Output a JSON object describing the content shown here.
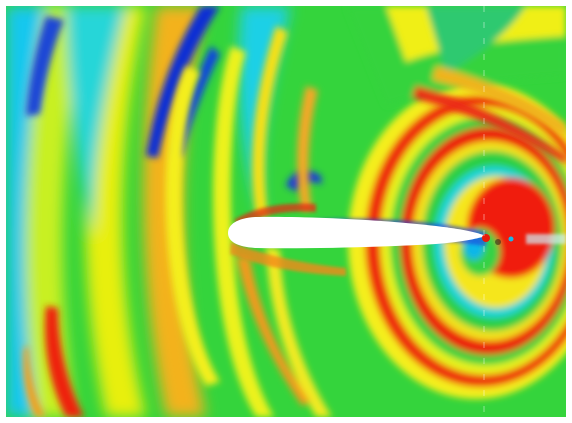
{
  "figure": {
    "kind": "cfd-contour-plot",
    "subject": "airfoil-acoustic-pressure-field",
    "colormap": [
      "#0a2ad8",
      "#19c8f0",
      "#2ed23a",
      "#f0f000",
      "#f09a00",
      "#f00000"
    ],
    "background": "#ffffff",
    "airfoil_fill": "#ffffff"
  }
}
